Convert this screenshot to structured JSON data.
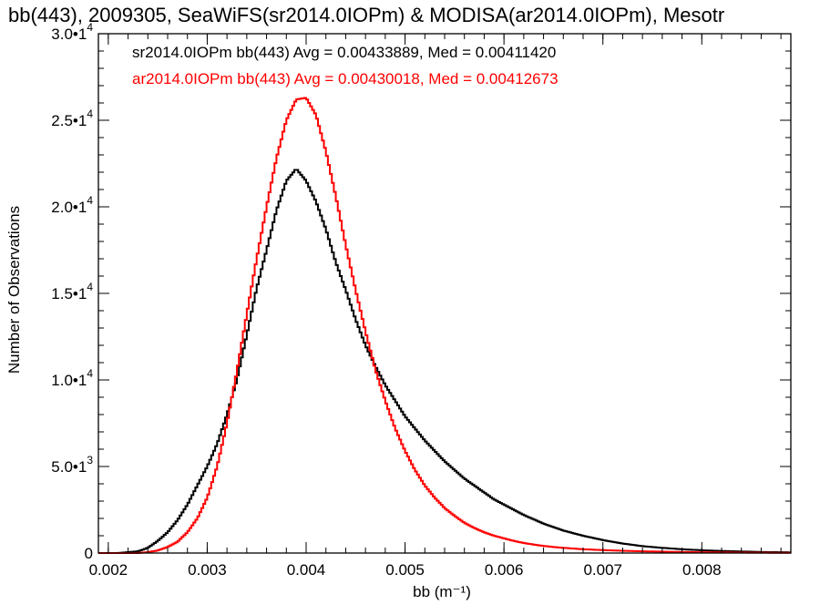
{
  "chart_data": {
    "type": "line",
    "title": "bb(443), 2009305, SeaWiFS(sr2014.0IOPm) & MODISA(ar2014.0IOPm), Mesotr",
    "xlabel": "bb (m⁻¹)",
    "ylabel": "Number of Observations",
    "xlim": [
      0.0019,
      0.0089
    ],
    "ylim": [
      0,
      30000
    ],
    "x_ticks": [
      0.002,
      0.003,
      0.004,
      0.005,
      0.006,
      0.007,
      0.008
    ],
    "x_tick_labels": [
      "0.002",
      "0.003",
      "0.004",
      "0.005",
      "0.006",
      "0.007",
      "0.008"
    ],
    "y_ticks": [
      0,
      5000,
      10000,
      15000,
      20000,
      25000,
      30000
    ],
    "y_tick_labels": [
      {
        "mant": "0",
        "exp": ""
      },
      {
        "mant": "5.0•1",
        "exp": "3"
      },
      {
        "mant": "1.0•1",
        "exp": "4"
      },
      {
        "mant": "1.5•1",
        "exp": "4"
      },
      {
        "mant": "2.0•1",
        "exp": "4"
      },
      {
        "mant": "2.5•1",
        "exp": "4"
      },
      {
        "mant": "3.0•1",
        "exp": "4"
      }
    ],
    "step": true,
    "legend_placement": "top-left",
    "series": [
      {
        "name": "sr2014.0IOPm bb(443) Avg = 0.00433889, Med = 0.00411420",
        "color": "#000000",
        "x": [
          0.0019,
          0.0021,
          0.0023,
          0.0024,
          0.0025,
          0.0026,
          0.0027,
          0.0028,
          0.0029,
          0.003,
          0.0031,
          0.0032,
          0.0033,
          0.0034,
          0.0035,
          0.0036,
          0.0037,
          0.0038,
          0.0039,
          0.004,
          0.0041,
          0.0042,
          0.0043,
          0.0044,
          0.0045,
          0.0046,
          0.0047,
          0.0048,
          0.0049,
          0.005,
          0.0051,
          0.0052,
          0.0053,
          0.0054,
          0.0055,
          0.0056,
          0.0057,
          0.0058,
          0.0059,
          0.006,
          0.0061,
          0.0062,
          0.0063,
          0.0064,
          0.0065,
          0.0066,
          0.0067,
          0.0068,
          0.007,
          0.0072,
          0.0074,
          0.0076,
          0.0078,
          0.008,
          0.0082,
          0.0084,
          0.0086,
          0.0089
        ],
        "y": [
          0,
          0,
          100,
          300,
          700,
          1200,
          1900,
          2800,
          3900,
          5000,
          6300,
          8000,
          10000,
          12600,
          15300,
          17500,
          19800,
          21500,
          22200,
          21500,
          20300,
          18700,
          16800,
          15200,
          13500,
          12000,
          10800,
          9700,
          8800,
          7900,
          7200,
          6500,
          5900,
          5300,
          4800,
          4300,
          3900,
          3500,
          3100,
          2800,
          2500,
          2200,
          1950,
          1700,
          1500,
          1300,
          1150,
          1000,
          750,
          550,
          400,
          300,
          220,
          160,
          120,
          90,
          60,
          40
        ]
      },
      {
        "name": "ar2014.0IOPm bb(443) Avg = 0.00430018, Med = 0.00412673",
        "color": "#ff0000",
        "x": [
          0.0019,
          0.0021,
          0.0023,
          0.0024,
          0.0025,
          0.0026,
          0.0027,
          0.0028,
          0.0029,
          0.003,
          0.0031,
          0.0032,
          0.0033,
          0.0034,
          0.0035,
          0.0036,
          0.0037,
          0.0038,
          0.0039,
          0.004,
          0.0041,
          0.0042,
          0.0043,
          0.0044,
          0.0045,
          0.0046,
          0.0047,
          0.0048,
          0.0049,
          0.005,
          0.0051,
          0.0052,
          0.0053,
          0.0054,
          0.0055,
          0.0056,
          0.0057,
          0.0058,
          0.0059,
          0.006,
          0.0061,
          0.0062,
          0.0063,
          0.0064,
          0.0065,
          0.0066,
          0.0067,
          0.0068,
          0.007,
          0.0072,
          0.0074,
          0.0076,
          0.0078,
          0.008,
          0.0082,
          0.0084,
          0.0086,
          0.0089
        ],
        "y": [
          0,
          0,
          0,
          50,
          150,
          350,
          650,
          1200,
          2000,
          3200,
          5000,
          7500,
          10500,
          13800,
          17000,
          20000,
          22800,
          25000,
          26200,
          26300,
          25300,
          23200,
          20600,
          17800,
          15200,
          12800,
          10600,
          8800,
          7200,
          5900,
          4800,
          3900,
          3200,
          2600,
          2150,
          1750,
          1450,
          1200,
          1000,
          850,
          700,
          580,
          490,
          410,
          350,
          300,
          260,
          220,
          170,
          130,
          100,
          80,
          60,
          45,
          35,
          25,
          18,
          12
        ]
      }
    ]
  }
}
